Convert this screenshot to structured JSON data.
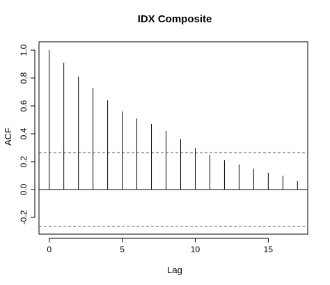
{
  "chart_data": {
    "type": "bar",
    "title": "IDX Composite",
    "xlabel": "Lag",
    "ylabel": "ACF",
    "x": [
      0,
      1,
      2,
      3,
      4,
      5,
      6,
      7,
      8,
      9,
      10,
      11,
      12,
      13,
      14,
      15,
      16,
      17
    ],
    "values": [
      1.0,
      0.91,
      0.81,
      0.73,
      0.64,
      0.56,
      0.51,
      0.47,
      0.42,
      0.36,
      0.3,
      0.25,
      0.21,
      0.18,
      0.15,
      0.12,
      0.1,
      0.06
    ],
    "confidence_bounds": [
      0.265,
      -0.265
    ],
    "confidence_color": "#3355cc",
    "xlim": [
      -0.7,
      17.7
    ],
    "ylim": [
      -0.32,
      1.06
    ],
    "x_ticks": [
      0,
      5,
      10,
      15
    ],
    "y_ticks": [
      -0.2,
      0.0,
      0.2,
      0.4,
      0.6,
      0.8,
      1.0
    ],
    "y_tick_labels": [
      "-0.2",
      "0.0",
      "0.2",
      "0.4",
      "0.6",
      "0.8",
      "1.0"
    ],
    "grid": false,
    "legend": "none"
  }
}
